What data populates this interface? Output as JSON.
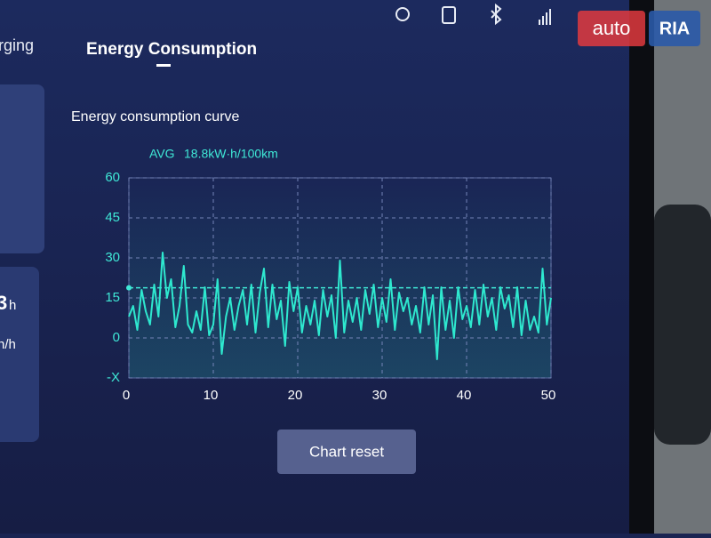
{
  "screen": {
    "tabs": [
      "rging",
      "Energy Consumption"
    ],
    "left_panel": {
      "value_fragment": "3",
      "unit_fragment": "h",
      "rate_fragment": "n/h"
    },
    "button": "Chart reset",
    "watermark": {
      "left": "auto",
      "right": "RIA"
    }
  },
  "chart_data": {
    "type": "line",
    "title": "Energy consumption curve",
    "reference_line": {
      "name": "AVG",
      "value": 18.8,
      "value_label": "18.8kW·h/100km",
      "color": "#3fe8d6"
    },
    "x": [
      0,
      0.5,
      1,
      1.5,
      2,
      2.5,
      3,
      3.5,
      4,
      4.5,
      5,
      5.5,
      6,
      6.5,
      7,
      7.5,
      8,
      8.5,
      9,
      9.5,
      10,
      10.5,
      11,
      11.5,
      12,
      12.5,
      13,
      13.5,
      14,
      14.5,
      15,
      15.5,
      16,
      16.5,
      17,
      17.5,
      18,
      18.5,
      19,
      19.5,
      20,
      20.5,
      21,
      21.5,
      22,
      22.5,
      23,
      23.5,
      24,
      24.5,
      25,
      25.5,
      26,
      26.5,
      27,
      27.5,
      28,
      28.5,
      29,
      29.5,
      30,
      30.5,
      31,
      31.5,
      32,
      32.5,
      33,
      33.5,
      34,
      34.5,
      35,
      35.5,
      36,
      36.5,
      37,
      37.5,
      38,
      38.5,
      39,
      39.5,
      40,
      40.5,
      41,
      41.5,
      42,
      42.5,
      43,
      43.5,
      44,
      44.5,
      45,
      45.5,
      46,
      46.5,
      47,
      47.5,
      48,
      48.5,
      49,
      49.5,
      50
    ],
    "values": [
      8,
      12,
      3,
      18,
      10,
      5,
      20,
      8,
      32,
      15,
      22,
      4,
      12,
      27,
      5,
      2,
      10,
      3,
      19,
      1,
      5,
      22,
      -6,
      8,
      15,
      3,
      12,
      18,
      5,
      20,
      2,
      17,
      26,
      4,
      20,
      7,
      14,
      -3,
      21,
      10,
      19,
      2,
      12,
      5,
      14,
      1,
      18,
      8,
      16,
      0,
      29,
      2,
      14,
      6,
      15,
      3,
      18,
      9,
      20,
      4,
      15,
      6,
      22,
      3,
      17,
      10,
      15,
      5,
      12,
      2,
      19,
      5,
      16,
      -8,
      19,
      3,
      14,
      0,
      19,
      7,
      12,
      4,
      18,
      5,
      20,
      8,
      15,
      3,
      19,
      11,
      16,
      4,
      19,
      1,
      14,
      3,
      8,
      2,
      26,
      5,
      15
    ],
    "color": "#2ee8cf",
    "xlim": [
      0,
      50
    ],
    "xticks": [
      0,
      10,
      20,
      30,
      40,
      50
    ],
    "ylim": [
      -15,
      60
    ],
    "yticks": [
      {
        "value": -15,
        "label": "-X"
      },
      0,
      15,
      30,
      45,
      60
    ],
    "grid": true
  }
}
